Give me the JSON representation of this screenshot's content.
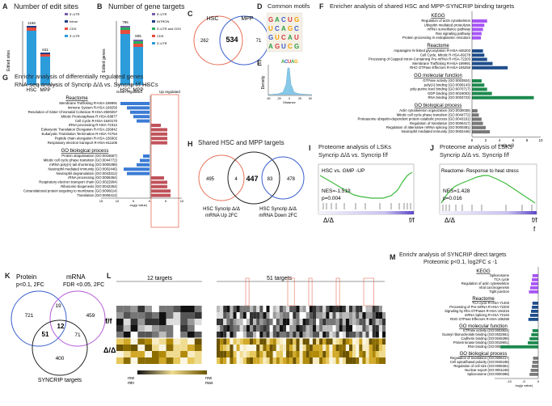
{
  "colors": {
    "mutant_red": "#e8725a",
    "blue": "#3a5fcd",
    "purple": "#b45bd6",
    "gsea_green": "#3dbb3d",
    "kegg_purple": "#a855f7",
    "reactome_navy": "#1f4e8c",
    "go_mf_green": "#1d8a4e",
    "go_bp_gray": "#7a7a7a",
    "down_blue": "#3a7bd5",
    "up_red": "#c0525a"
  },
  "panelA": {
    "label": "A",
    "title": "Number of edit sites",
    "ylabel": "Edited sites",
    "legend": [
      "5'-UTR",
      "Intron",
      "CDS",
      "3'-UTR"
    ],
    "totals": [
      "1166",
      "631"
    ],
    "categories": [
      "HSC",
      "MPP"
    ]
  },
  "panelB": {
    "label": "B",
    "title": "Number of gene targets",
    "ylabel": "Edited genes",
    "legend": [
      "5'-UTR",
      "INTRON",
      "3'-UTR and CDS",
      "CDS",
      "3'-UTR"
    ],
    "totals": [
      "796",
      "605"
    ],
    "categories": [
      "HSC",
      "MPP"
    ]
  },
  "panelC": {
    "label": "C",
    "set1": "HSC",
    "set2": "MPP",
    "left": "262",
    "mid": "534",
    "right": "71"
  },
  "panelD": {
    "label": "D",
    "title": "Common motifs"
  },
  "panelE": {
    "label": "E",
    "ylabel": "Density",
    "xlabel": "Distance",
    "motif": "ACUAG",
    "xticks": [
      "-50",
      "-25",
      "0",
      "25",
      "50"
    ]
  },
  "panelF": {
    "label": "F",
    "title": "Enricher analysis of shared HSC and MPP-SYNCRIP binding targets",
    "sections": [
      {
        "name": "KEGG",
        "items": [
          "Regulation of actin cytoskeleton",
          "Ubiquitin mediated proteolysis",
          "mRNA surveillance pathway",
          "Ras signaling pathway",
          "Protein processing in endoplasmic reticulum"
        ]
      },
      {
        "name": "Reactome",
        "items": [
          "Asparagine N-linked glycosylation R-HSA-446203",
          "Cell Cycle, Mitotic R-HSA-69278",
          "Processing of Capped Intron-Containing Pre-mRNA R-HSA-72203",
          "Membrane Trafficking R-HSA-199991",
          "RHO GTPase Effectors R-HSA-195258"
        ]
      },
      {
        "name": "GO molecular function",
        "items": [
          "GTPase activity (GO:0003924)",
          "poly(A) binding (GO:0008143)",
          "poly-purine tract binding (GO:0070717)",
          "GDP binding (GO:0019003)",
          "RNA binding (GO:0003723)"
        ]
      },
      {
        "name": "GO biological process",
        "items": [
          "Actin cytoskeleton organization (GO:0030036)",
          "Mitotic cell cycle phase transition (GO:0044772)",
          "Proteasome ubiquitin-dependent protein catabolic process (GO:0043161)",
          "Regulation of translation (GO:0006417)",
          "Regulation of alternative mRNA splicing (GO:0000381)",
          "Neutrophil mediated immunity (GO:0002446)"
        ]
      }
    ],
    "xlabel": "-log(p adj)",
    "xticks": [
      "0",
      "2",
      "4",
      "6",
      "8",
      "10"
    ]
  },
  "panelG": {
    "label": "G",
    "title1": "Enrichr analysis of differentially regulated genes",
    "title2": "RNA-seq analysis of Syncrip Δ/Δ vs. Syncrip f/f HSCs",
    "down": "Down regulated",
    "up": "Up regulated",
    "sec1": "Reactome",
    "items1": [
      "Membrane Trafficking R-HSA-199991",
      "Immune System R-HSA-168256",
      "Resolution of Sister Chromatid Cohesion R-HSA-2500257",
      "Mitotic Prometaphase R-HSA-68877",
      "Cell Cycle R-HSA-1640170",
      "rRNA processing R-HSA-72312",
      "Eukaryotic Translation Elongation R-HSA-156842",
      "Eukaryotic Translation Termination R-HSA-72764",
      "Peptide chain elongation R-HSA-156902",
      "Respiratory electron transport R-HSA-611105"
    ],
    "sec2": "GO biological process",
    "items2": [
      "Protein ubiquitination (GO:0016567)",
      "Mitotic cell cycle phase transition (GO:0044772)",
      "mRNA poly(A) tail shortening (GO:0000289)",
      "Neutrophil mediated immunity (GO:0002446)",
      "Neutrophil degranulation (GO:0043312)",
      "rRNA processing (GO:0006364)",
      "Respiratory electron transport chain (GO:0022904)",
      "Ribosome biogenesis (GO:0042254)",
      "Cotranslational protein targeting to membrane (GO:0006614)",
      "Translation (GO:0006412)"
    ],
    "xlabel": "-log(p value)",
    "xticks": [
      "15",
      "10",
      "5",
      "0",
      "5",
      "10"
    ]
  },
  "panelH": {
    "label": "H",
    "title": "Shared HSC and MPP targets",
    "n1": "495",
    "n2": "4",
    "n3": "447",
    "n4": "83",
    "n5": "478",
    "lab1": "HSC Syncrip Δ/Δ",
    "lab1b": "mRNA Up 2FC",
    "lab2": "HSC Syncrip Δ/Δ",
    "lab2b": "mRNA Down 2FC"
  },
  "panelI": {
    "label": "I",
    "title1": "Proteome analysis of LSKs",
    "title2": "Syncrip Δ/Δ vs. Syncrip f/f",
    "set": "HSC vs. GMP -UP",
    "nes": "NES=-1.519",
    "p": "p=0.004",
    "left": "Δ/Δ",
    "right": "f/f"
  },
  "panelJ": {
    "label": "J",
    "title1": "Proteome analysis of LSKs",
    "title2": "Syncrip Δ/Δ vs. Syncrip f/f",
    "set": "Reactome- Response to heat stress",
    "nes": "NES=1.428",
    "p": "p=0.016",
    "left": "Δ/Δ",
    "right": "f/f",
    "right2": "f"
  },
  "panelK": {
    "label": "K",
    "t1": "Protein",
    "t1b": "p<0.1, 2FC",
    "t2": "mRNA",
    "t2b": "FDR <0.05, 2FC",
    "n721": "721",
    "n19": "19",
    "n459": "459",
    "n12": "12",
    "n51": "51",
    "n71": "71",
    "n400": "400",
    "bottom": "SYNCRIP targets"
  },
  "panelL": {
    "label": "L",
    "t12": "12 targets",
    "t51": "51 targets",
    "ff": "f/f",
    "dd": "Δ/Δ",
    "rowmin": "row\nmin",
    "rowmax": "row\nmax"
  },
  "panelM": {
    "label": "M",
    "title1": "Enrichr analysis of SYNCRIP direct targets",
    "title2": "Proteomic p<0.1, log2FC ≤ -1",
    "sections": [
      {
        "name": "KEGG",
        "items": [
          "Spliceosome",
          "TCA cycle",
          "Regulation of actin cytoskeleton",
          "Viral carcinogenesis",
          "Tight junction"
        ]
      },
      {
        "name": "Reactome",
        "items": [
          "TCA cycle R-HSA-71403",
          "Processing of  Pre-mRNA R-HSA-72203",
          "Signaling by Rho GTPases R-HSA-194315",
          "mRNA Splicing R-HSA-72163",
          "RHO GTPase Effectors R-HSA-195258"
        ]
      },
      {
        "name": "GO molecular function",
        "items": [
          "GTPase activity (GO:0003924)",
          "Guanyl ribonucleotide binding (GO:0032561)",
          "Cadherin binding (GO:0045296)",
          "Protein kinase binding (GO:0019901)",
          "RNA binding (GO:0003723)"
        ]
      },
      {
        "name": "GO biological process",
        "items": [
          "Regulation of translation (GO:0006417)",
          "Cell apical/basal polarity (GO:0045198)",
          "Regulation of cell size (GO:0008361)",
          "Nuclear export (GO:0051168)",
          "Spliceosome (GO:0000398)"
        ]
      }
    ],
    "xlabel": "-log(p value)",
    "xticks": [
      "-10",
      "-5",
      "0"
    ]
  }
}
